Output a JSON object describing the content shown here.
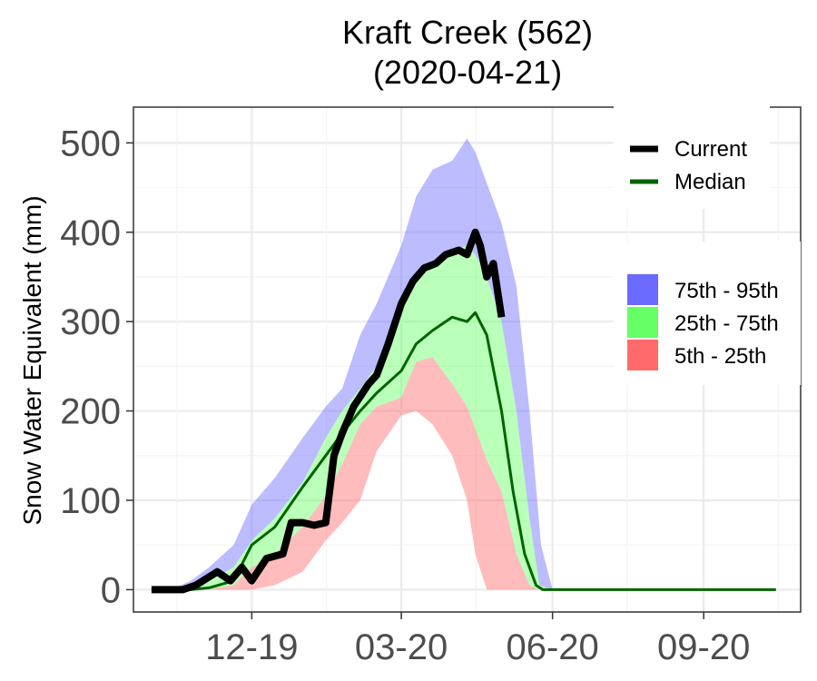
{
  "chart_data": {
    "type": "area",
    "title": "Kraft Creek (562)",
    "subtitle": "(2020-04-21)",
    "ylabel": "Snow Water Equivalent (mm)",
    "xlabel": "",
    "ylim": [
      -25,
      540
    ],
    "y_ticks": [
      0,
      100,
      200,
      300,
      400,
      500
    ],
    "x_tick_labels": [
      {
        "date": "2019-12-01",
        "label": "12-19"
      },
      {
        "date": "2020-03-01",
        "label": "03-20"
      },
      {
        "date": "2020-06-01",
        "label": "06-20"
      },
      {
        "date": "2020-09-01",
        "label": "09-20"
      }
    ],
    "xlim": [
      "2019-09-20",
      "2020-10-30"
    ],
    "grid": true,
    "legend_lines": [
      {
        "name": "Current",
        "color": "#000000"
      },
      {
        "name": "Median",
        "color": "#006400"
      }
    ],
    "legend_bands": [
      {
        "name": "75th - 95th",
        "color": "#6b6bff"
      },
      {
        "name": "25th - 75th",
        "color": "#66ff66"
      },
      {
        "name": "5th - 25th",
        "color": "#ff6b6b"
      }
    ],
    "bands": {
      "p95": [
        [
          "2019-10-01",
          0
        ],
        [
          "2019-10-15",
          2
        ],
        [
          "2019-10-25",
          10
        ],
        [
          "2019-11-05",
          25
        ],
        [
          "2019-11-20",
          50
        ],
        [
          "2019-12-01",
          95
        ],
        [
          "2019-12-15",
          125
        ],
        [
          "2020-01-01",
          170
        ],
        [
          "2020-01-15",
          205
        ],
        [
          "2020-01-25",
          225
        ],
        [
          "2020-02-05",
          285
        ],
        [
          "2020-02-15",
          320
        ],
        [
          "2020-03-01",
          385
        ],
        [
          "2020-03-10",
          440
        ],
        [
          "2020-03-20",
          470
        ],
        [
          "2020-04-01",
          480
        ],
        [
          "2020-04-10",
          505
        ],
        [
          "2020-04-15",
          490
        ],
        [
          "2020-04-22",
          455
        ],
        [
          "2020-05-01",
          410
        ],
        [
          "2020-05-10",
          340
        ],
        [
          "2020-05-18",
          200
        ],
        [
          "2020-05-25",
          50
        ],
        [
          "2020-06-01",
          0
        ],
        [
          "2020-10-15",
          0
        ]
      ],
      "p75": [
        [
          "2019-10-01",
          0
        ],
        [
          "2019-10-15",
          0
        ],
        [
          "2019-10-25",
          2
        ],
        [
          "2019-11-05",
          10
        ],
        [
          "2019-11-20",
          25
        ],
        [
          "2019-12-01",
          55
        ],
        [
          "2019-12-15",
          80
        ],
        [
          "2020-01-01",
          120
        ],
        [
          "2020-01-15",
          170
        ],
        [
          "2020-01-25",
          200
        ],
        [
          "2020-02-05",
          225
        ],
        [
          "2020-02-15",
          250
        ],
        [
          "2020-03-01",
          315
        ],
        [
          "2020-03-10",
          345
        ],
        [
          "2020-03-20",
          365
        ],
        [
          "2020-04-01",
          380
        ],
        [
          "2020-04-10",
          385
        ],
        [
          "2020-04-15",
          375
        ],
        [
          "2020-04-22",
          350
        ],
        [
          "2020-05-01",
          300
        ],
        [
          "2020-05-10",
          200
        ],
        [
          "2020-05-18",
          80
        ],
        [
          "2020-05-24",
          5
        ],
        [
          "2020-06-01",
          0
        ],
        [
          "2020-10-15",
          0
        ]
      ],
      "p25": [
        [
          "2019-10-01",
          0
        ],
        [
          "2019-10-15",
          0
        ],
        [
          "2019-10-25",
          0
        ],
        [
          "2019-11-05",
          0
        ],
        [
          "2019-11-20",
          5
        ],
        [
          "2019-12-01",
          25
        ],
        [
          "2019-12-15",
          40
        ],
        [
          "2020-01-01",
          70
        ],
        [
          "2020-01-15",
          105
        ],
        [
          "2020-01-25",
          140
        ],
        [
          "2020-02-05",
          185
        ],
        [
          "2020-02-15",
          205
        ],
        [
          "2020-03-01",
          215
        ],
        [
          "2020-03-10",
          255
        ],
        [
          "2020-03-20",
          260
        ],
        [
          "2020-04-01",
          230
        ],
        [
          "2020-04-10",
          205
        ],
        [
          "2020-04-15",
          180
        ],
        [
          "2020-04-22",
          145
        ],
        [
          "2020-05-01",
          110
        ],
        [
          "2020-05-10",
          40
        ],
        [
          "2020-05-18",
          5
        ],
        [
          "2020-05-24",
          0
        ],
        [
          "2020-06-01",
          0
        ],
        [
          "2020-10-15",
          0
        ]
      ],
      "p5": [
        [
          "2019-10-01",
          0
        ],
        [
          "2019-10-15",
          0
        ],
        [
          "2019-10-25",
          0
        ],
        [
          "2019-11-05",
          0
        ],
        [
          "2019-11-20",
          0
        ],
        [
          "2019-12-01",
          0
        ],
        [
          "2019-12-15",
          5
        ],
        [
          "2020-01-01",
          20
        ],
        [
          "2020-01-15",
          55
        ],
        [
          "2020-01-25",
          75
        ],
        [
          "2020-02-05",
          100
        ],
        [
          "2020-02-15",
          155
        ],
        [
          "2020-03-01",
          195
        ],
        [
          "2020-03-10",
          200
        ],
        [
          "2020-03-20",
          185
        ],
        [
          "2020-04-01",
          150
        ],
        [
          "2020-04-10",
          100
        ],
        [
          "2020-04-15",
          40
        ],
        [
          "2020-04-22",
          0
        ],
        [
          "2020-05-01",
          0
        ],
        [
          "2020-05-10",
          0
        ],
        [
          "2020-05-18",
          0
        ],
        [
          "2020-05-24",
          0
        ],
        [
          "2020-06-01",
          0
        ],
        [
          "2020-10-15",
          0
        ]
      ]
    },
    "series": [
      {
        "name": "Current",
        "color": "#000000",
        "points": [
          [
            "2019-10-01",
            0
          ],
          [
            "2019-10-20",
            0
          ],
          [
            "2019-10-28",
            5
          ],
          [
            "2019-11-10",
            20
          ],
          [
            "2019-11-18",
            10
          ],
          [
            "2019-11-25",
            25
          ],
          [
            "2019-12-01",
            10
          ],
          [
            "2019-12-10",
            35
          ],
          [
            "2019-12-20",
            40
          ],
          [
            "2019-12-25",
            75
          ],
          [
            "2020-01-01",
            75
          ],
          [
            "2020-01-08",
            72
          ],
          [
            "2020-01-15",
            75
          ],
          [
            "2020-01-20",
            150
          ],
          [
            "2020-01-25",
            175
          ],
          [
            "2020-02-01",
            205
          ],
          [
            "2020-02-10",
            230
          ],
          [
            "2020-02-15",
            240
          ],
          [
            "2020-02-22",
            275
          ],
          [
            "2020-03-01",
            320
          ],
          [
            "2020-03-08",
            345
          ],
          [
            "2020-03-15",
            360
          ],
          [
            "2020-03-22",
            365
          ],
          [
            "2020-03-28",
            375
          ],
          [
            "2020-04-05",
            380
          ],
          [
            "2020-04-10",
            375
          ],
          [
            "2020-04-15",
            400
          ],
          [
            "2020-04-18",
            385
          ],
          [
            "2020-04-22",
            350
          ],
          [
            "2020-04-26",
            365
          ],
          [
            "2020-05-01",
            305
          ]
        ]
      },
      {
        "name": "Median",
        "color": "#006400",
        "points": [
          [
            "2019-10-01",
            0
          ],
          [
            "2019-10-25",
            0
          ],
          [
            "2019-11-05",
            2
          ],
          [
            "2019-11-20",
            10
          ],
          [
            "2019-12-01",
            50
          ],
          [
            "2019-12-15",
            70
          ],
          [
            "2020-01-01",
            115
          ],
          [
            "2020-01-15",
            150
          ],
          [
            "2020-01-25",
            175
          ],
          [
            "2020-02-05",
            200
          ],
          [
            "2020-02-15",
            220
          ],
          [
            "2020-03-01",
            245
          ],
          [
            "2020-03-10",
            275
          ],
          [
            "2020-03-20",
            290
          ],
          [
            "2020-04-01",
            305
          ],
          [
            "2020-04-10",
            300
          ],
          [
            "2020-04-15",
            310
          ],
          [
            "2020-04-22",
            285
          ],
          [
            "2020-05-01",
            200
          ],
          [
            "2020-05-08",
            110
          ],
          [
            "2020-05-15",
            40
          ],
          [
            "2020-05-22",
            5
          ],
          [
            "2020-05-26",
            0
          ],
          [
            "2020-10-15",
            0
          ]
        ]
      }
    ]
  }
}
